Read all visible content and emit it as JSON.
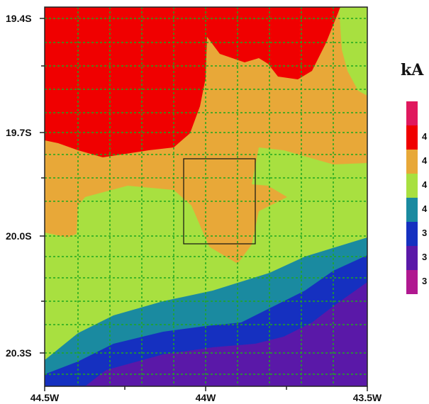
{
  "map": {
    "y_axis_labels": [
      "19.4S",
      "19.7S",
      "20.0S",
      "20.3S"
    ],
    "x_axis_labels": [
      "44.5W",
      "44W",
      "43.5W"
    ],
    "grid": true,
    "grid_color": "#1fa81f",
    "highlight_box": true
  },
  "legend": {
    "unit": "kA",
    "placement": "right",
    "entries": [
      {
        "color": "#e0195e",
        "label": ""
      },
      {
        "color": "#f00000",
        "label": "4"
      },
      {
        "color": "#e8a838",
        "label": "4"
      },
      {
        "color": "#a8e040",
        "label": "4"
      },
      {
        "color": "#1a8aa0",
        "label": "4"
      },
      {
        "color": "#1530c0",
        "label": "3"
      },
      {
        "color": "#5a18a8",
        "label": "3"
      },
      {
        "color": "#b01890",
        "label": "3"
      }
    ]
  },
  "colors": {
    "red": "#f00000",
    "orange": "#e8a838",
    "green": "#a8e040",
    "teal": "#1a8aa0",
    "blue": "#1530c0",
    "purple": "#5a18a8"
  }
}
